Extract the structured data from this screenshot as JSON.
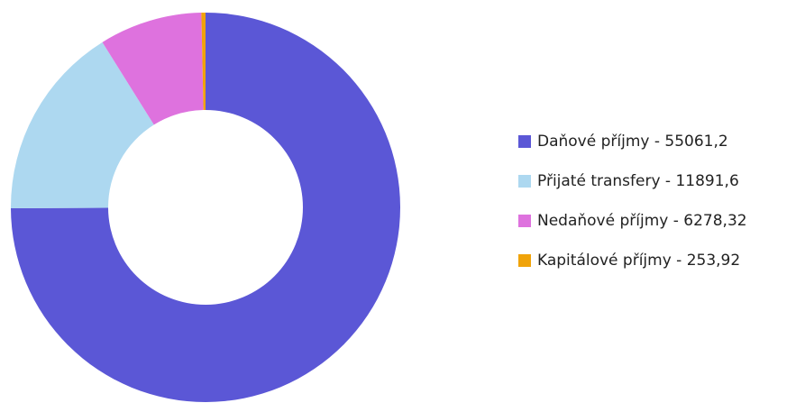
{
  "chart_data": {
    "type": "donut",
    "categories": [
      "Daňové příjmy - 55061,2",
      "Přijaté transfery - 11891,6",
      "Nedaňové příjmy - 6278,32",
      "Kapitálové příjmy - 253,92"
    ],
    "values": [
      55061.2,
      11891.6,
      6278.32,
      253.92
    ],
    "colors": [
      "#5b57d6",
      "#add8f0",
      "#de72de",
      "#f0a30a"
    ],
    "legend": "right"
  }
}
